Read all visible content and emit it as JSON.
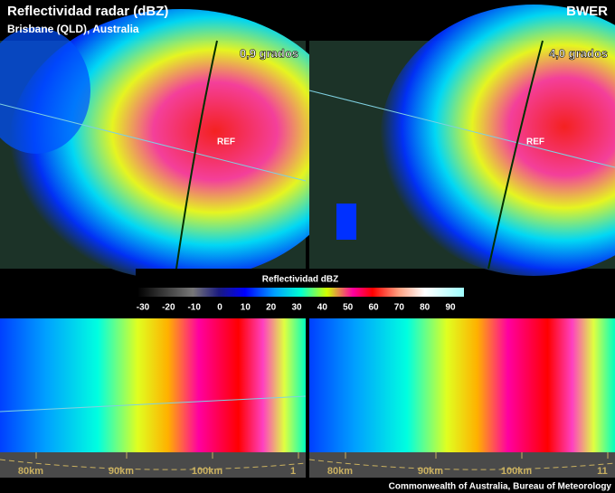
{
  "header": {
    "title": "Reflectividad radar (dBZ)",
    "subtitle": "Brisbane (QLD), Australia",
    "tag": "BWER"
  },
  "panels": [
    {
      "label": "0,9 grados",
      "marker": "REF",
      "distances": [
        "80km",
        "90km",
        "100km",
        "1"
      ]
    },
    {
      "label": "4,0 grados",
      "marker": "REF",
      "distances": [
        "80km",
        "90km",
        "100km",
        "11"
      ]
    }
  ],
  "colorbar": {
    "title": "Reflectividad dBZ",
    "ticks": [
      -30,
      -20,
      -10,
      0,
      10,
      20,
      30,
      40,
      50,
      60,
      70,
      80,
      90
    ]
  },
  "footer": {
    "credit": "Commonwealth of Australia, Bureau of Meteorology"
  }
}
